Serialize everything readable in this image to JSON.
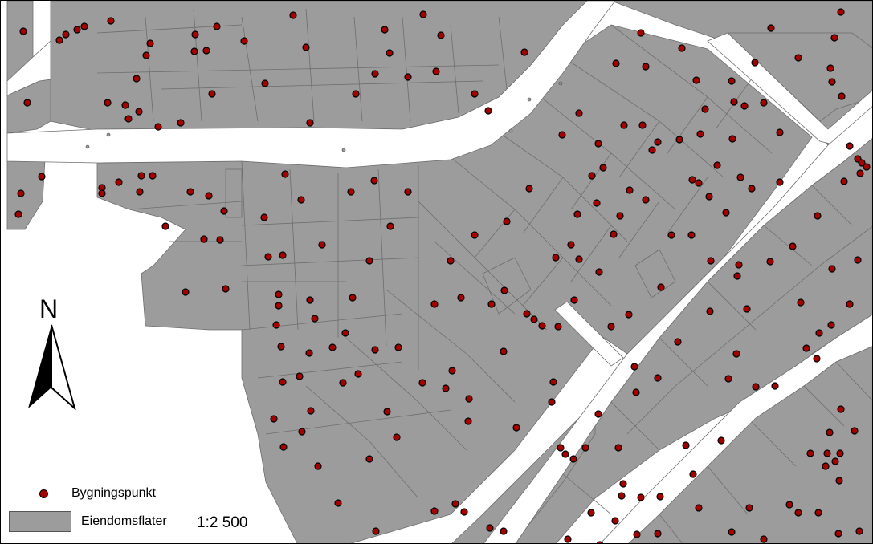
{
  "map": {
    "north_label": "N",
    "scale": "1:2 500",
    "legend": {
      "items": [
        {
          "label": "Bygningspunkt",
          "symbol": "point"
        },
        {
          "label": "Eiendomsflater",
          "symbol": "polygon"
        }
      ]
    },
    "colors": {
      "parcel_fill": "#9c9c9c",
      "parcel_line": "#6e6e6e",
      "road": "#ffffff",
      "building_point": "#a30000",
      "building_outline": "#000000"
    },
    "icons": [
      "north-arrow-icon"
    ]
  }
}
